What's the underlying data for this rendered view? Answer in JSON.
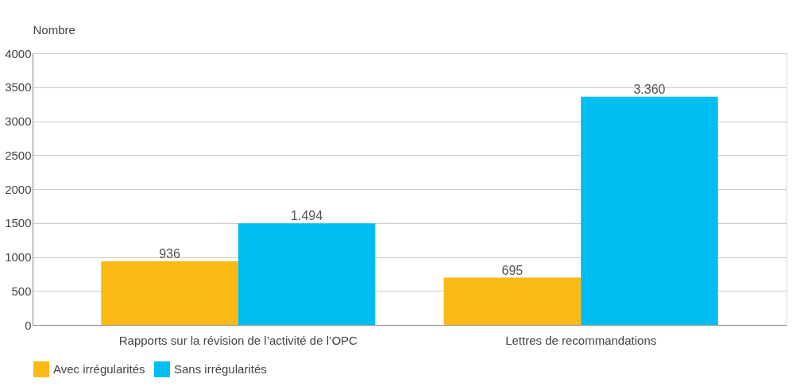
{
  "chart_data": {
    "type": "bar",
    "ylabel": "Nombre",
    "categories": [
      "Rapports sur la révision de l’activité de l’OPC",
      "Lettres de recommandations"
    ],
    "series": [
      {
        "name": "Avec irrégularités",
        "color": "#fbb916",
        "values": [
          936,
          695
        ],
        "value_labels": [
          "936",
          "695"
        ]
      },
      {
        "name": "Sans irrégularités",
        "color": "#00bdf2",
        "values": [
          1494,
          3360
        ],
        "value_labels": [
          "1.494",
          "3.360"
        ]
      }
    ],
    "ylim": [
      0,
      4000
    ],
    "yticks": [
      0,
      500,
      1000,
      1500,
      2000,
      2500,
      3000,
      3500,
      4000
    ],
    "grid": "y",
    "legend": "bottom"
  }
}
